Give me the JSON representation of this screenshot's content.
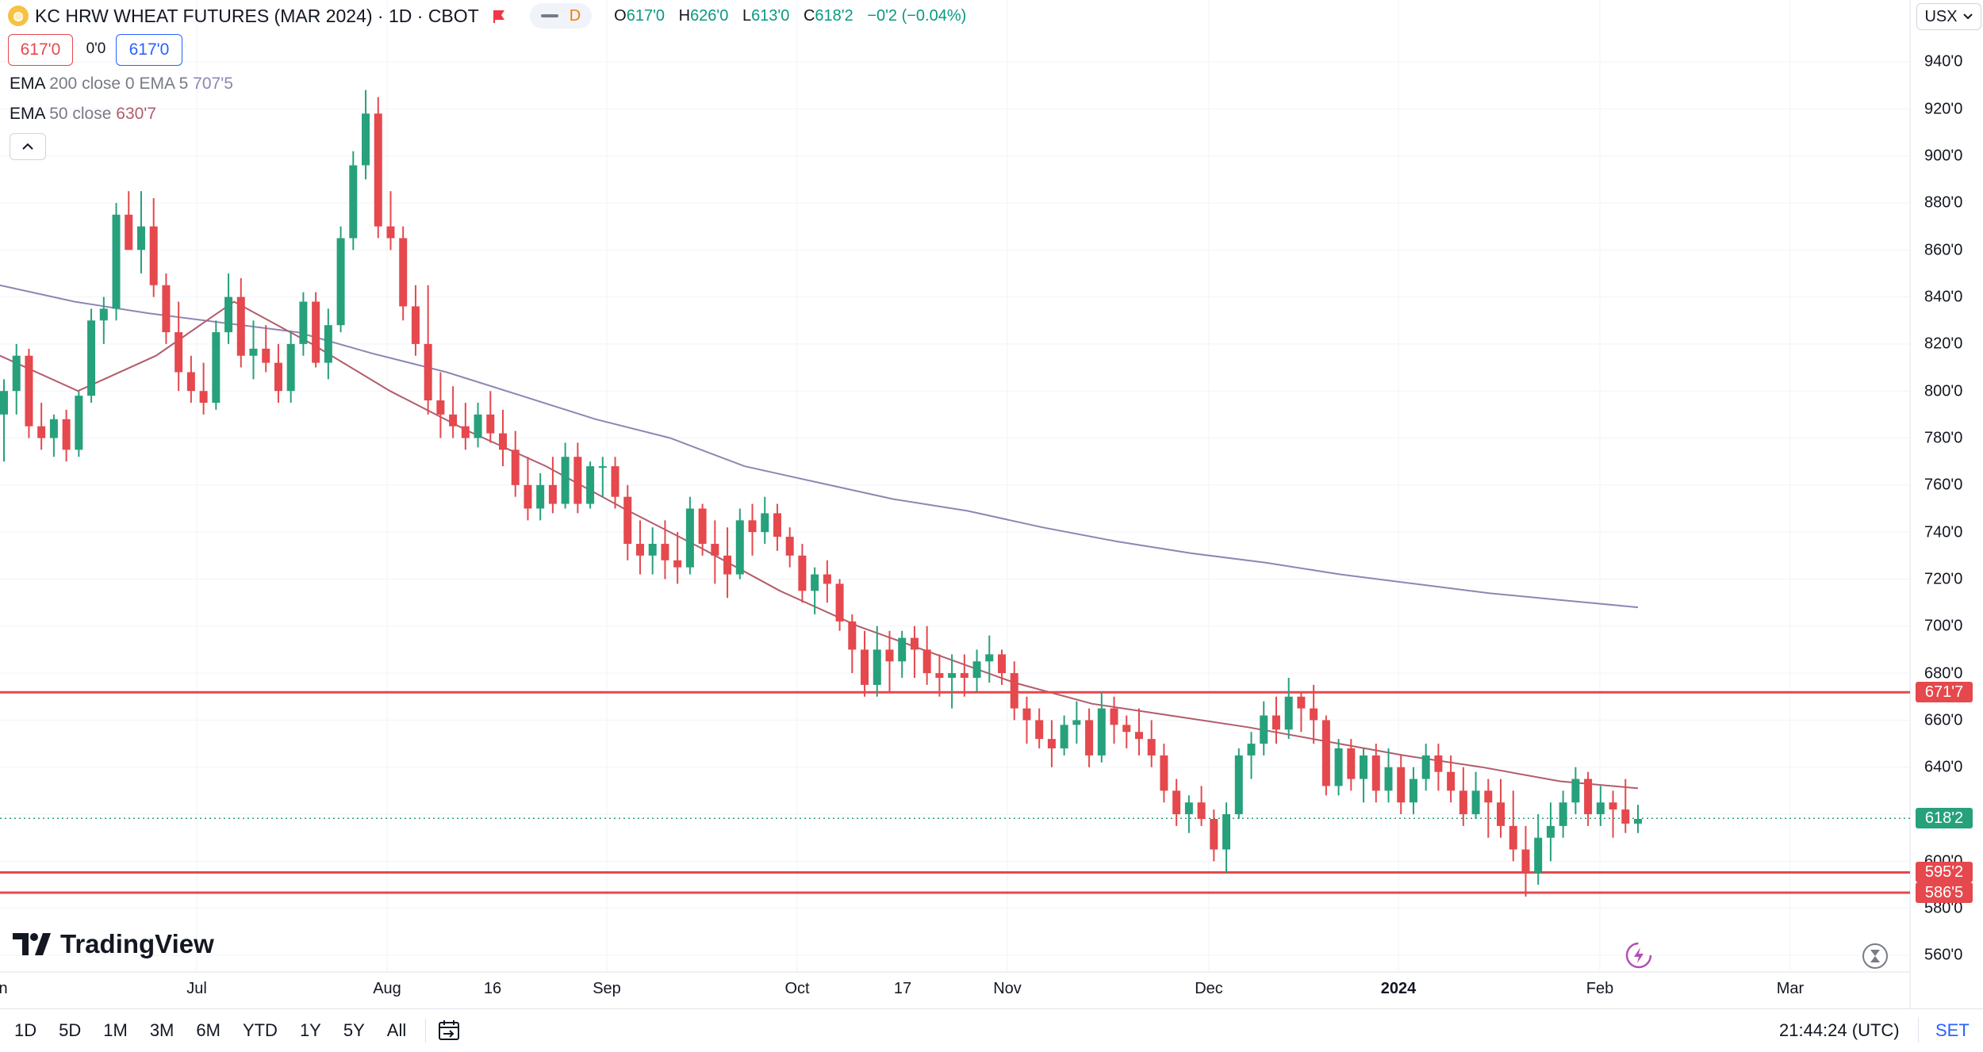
{
  "header": {
    "symbol_title": "KC HRW WHEAT FUTURES (MAR 2024) · 1D · CBOT",
    "badge_letter": "D",
    "ohlc": {
      "o_label": "O",
      "o_value": "617'0",
      "h_label": "H",
      "h_value": "626'0",
      "l_label": "L",
      "l_value": "613'0",
      "c_label": "C",
      "c_value": "618'2",
      "change": "−0'2 (−0.04%)"
    },
    "sell_price": "617'0",
    "spread": "0'0",
    "buy_price": "617'0"
  },
  "legend": {
    "ema200_name": "EMA",
    "ema200_params": "200 close 0 EMA 5",
    "ema200_value": "707'5",
    "ema50_name": "EMA",
    "ema50_params": "50 close",
    "ema50_value": "630'7"
  },
  "currency_selector": "USX",
  "y_axis_labels": [
    "940'0",
    "920'0",
    "900'0",
    "880'0",
    "860'0",
    "840'0",
    "820'0",
    "800'0",
    "780'0",
    "760'0",
    "740'0",
    "720'0",
    "700'0",
    "680'0",
    "660'0",
    "640'0",
    "600'0",
    "580'0",
    "560'0"
  ],
  "price_tags": {
    "resistance": "671'7",
    "last": "618'2",
    "support_1": "595'2",
    "support_2": "586'5"
  },
  "x_axis_labels": [
    "n",
    "Jul",
    "Aug",
    "16",
    "Sep",
    "Oct",
    "17",
    "Nov",
    "Dec",
    "2024",
    "Feb",
    "Mar"
  ],
  "brand": "TradingView",
  "bottom_bar": {
    "timeframes": [
      "1D",
      "5D",
      "1M",
      "3M",
      "6M",
      "YTD",
      "1Y",
      "5Y",
      "All"
    ],
    "clock": "21:44:24 (UTC)",
    "set_label": "SET"
  },
  "colors": {
    "up": "#26a17b",
    "down": "#e5484d",
    "ema200": "#8c87b3",
    "ema50": "#b35c6b",
    "level_line": "#e5484d",
    "last_tag": "#26a17b"
  },
  "chart_data": {
    "type": "candlestick",
    "y_scale_labels": [
      "940'0",
      "920'0",
      "900'0",
      "880'0",
      "860'0",
      "840'0",
      "820'0",
      "800'0",
      "780'0",
      "760'0",
      "740'0",
      "720'0",
      "700'0",
      "680'0",
      "660'0",
      "640'0",
      "600'0",
      "580'0",
      "560'0"
    ],
    "ylim": [
      555,
      950
    ],
    "horizontal_levels": [
      671.875,
      595.25,
      586.625
    ],
    "last_price": 618.25,
    "ema200": [
      845,
      838,
      833,
      829,
      825,
      816,
      808,
      798,
      788,
      780,
      768,
      761,
      754,
      749,
      742,
      736,
      731,
      727,
      722,
      718,
      714,
      711,
      708
    ],
    "ema50": [
      815,
      800,
      815,
      838,
      820,
      800,
      783,
      768,
      750,
      733,
      715,
      700,
      688,
      676,
      667,
      662,
      657,
      651,
      645,
      640,
      634,
      631
    ],
    "candles": [
      [
        790,
        805,
        770,
        800
      ],
      [
        800,
        820,
        790,
        815
      ],
      [
        815,
        818,
        780,
        785
      ],
      [
        785,
        795,
        775,
        780
      ],
      [
        780,
        790,
        772,
        788
      ],
      [
        788,
        792,
        770,
        775
      ],
      [
        775,
        800,
        772,
        798
      ],
      [
        798,
        835,
        795,
        830
      ],
      [
        830,
        840,
        820,
        835
      ],
      [
        835,
        880,
        830,
        875
      ],
      [
        875,
        885,
        860,
        860
      ],
      [
        860,
        885,
        850,
        870
      ],
      [
        870,
        882,
        840,
        845
      ],
      [
        845,
        850,
        820,
        825
      ],
      [
        825,
        838,
        800,
        808
      ],
      [
        808,
        815,
        795,
        800
      ],
      [
        800,
        812,
        790,
        795
      ],
      [
        795,
        830,
        792,
        825
      ],
      [
        825,
        850,
        820,
        840
      ],
      [
        840,
        848,
        810,
        815
      ],
      [
        815,
        830,
        805,
        818
      ],
      [
        818,
        828,
        808,
        812
      ],
      [
        812,
        820,
        795,
        800
      ],
      [
        800,
        825,
        795,
        820
      ],
      [
        820,
        842,
        815,
        838
      ],
      [
        838,
        842,
        810,
        812
      ],
      [
        812,
        835,
        805,
        828
      ],
      [
        828,
        870,
        825,
        865
      ],
      [
        865,
        902,
        860,
        896
      ],
      [
        896,
        928,
        890,
        918
      ],
      [
        918,
        925,
        865,
        870
      ],
      [
        870,
        885,
        860,
        865
      ],
      [
        865,
        870,
        830,
        836
      ],
      [
        836,
        845,
        815,
        820
      ],
      [
        820,
        845,
        790,
        796
      ],
      [
        796,
        808,
        780,
        790
      ],
      [
        790,
        802,
        780,
        785
      ],
      [
        785,
        795,
        775,
        780
      ],
      [
        780,
        795,
        776,
        790
      ],
      [
        790,
        800,
        778,
        782
      ],
      [
        782,
        792,
        768,
        775
      ],
      [
        775,
        783,
        755,
        760
      ],
      [
        760,
        772,
        745,
        750
      ],
      [
        750,
        765,
        745,
        760
      ],
      [
        760,
        772,
        748,
        752
      ],
      [
        752,
        778,
        750,
        772
      ],
      [
        772,
        778,
        748,
        752
      ],
      [
        752,
        770,
        750,
        768
      ],
      [
        768,
        772,
        755,
        768
      ],
      [
        768,
        772,
        750,
        755
      ],
      [
        755,
        760,
        728,
        735
      ],
      [
        735,
        745,
        722,
        730
      ],
      [
        730,
        742,
        722,
        735
      ],
      [
        735,
        745,
        720,
        728
      ],
      [
        728,
        740,
        718,
        725
      ],
      [
        725,
        755,
        722,
        750
      ],
      [
        750,
        752,
        730,
        735
      ],
      [
        735,
        745,
        718,
        730
      ],
      [
        730,
        742,
        712,
        722
      ],
      [
        722,
        750,
        720,
        745
      ],
      [
        745,
        752,
        730,
        740
      ],
      [
        740,
        755,
        735,
        748
      ],
      [
        748,
        752,
        732,
        738
      ],
      [
        738,
        742,
        725,
        730
      ],
      [
        730,
        735,
        710,
        715
      ],
      [
        715,
        725,
        705,
        722
      ],
      [
        722,
        728,
        710,
        718
      ],
      [
        718,
        720,
        698,
        702
      ],
      [
        702,
        705,
        680,
        690
      ],
      [
        690,
        698,
        670,
        675
      ],
      [
        675,
        700,
        670,
        690
      ],
      [
        690,
        698,
        672,
        685
      ],
      [
        685,
        698,
        678,
        695
      ],
      [
        695,
        700,
        678,
        690
      ],
      [
        690,
        700,
        675,
        680
      ],
      [
        680,
        688,
        670,
        678
      ],
      [
        678,
        688,
        665,
        680
      ],
      [
        680,
        688,
        670,
        678
      ],
      [
        678,
        690,
        672,
        685
      ],
      [
        685,
        696,
        676,
        688
      ],
      [
        688,
        690,
        675,
        680
      ],
      [
        680,
        685,
        660,
        665
      ],
      [
        665,
        670,
        650,
        660
      ],
      [
        660,
        665,
        648,
        652
      ],
      [
        652,
        660,
        640,
        648
      ],
      [
        648,
        662,
        645,
        658
      ],
      [
        658,
        668,
        650,
        660
      ],
      [
        660,
        665,
        640,
        645
      ],
      [
        645,
        672,
        642,
        665
      ],
      [
        665,
        670,
        650,
        658
      ],
      [
        658,
        662,
        648,
        655
      ],
      [
        655,
        665,
        645,
        652
      ],
      [
        652,
        660,
        640,
        645
      ],
      [
        645,
        650,
        625,
        630
      ],
      [
        630,
        635,
        615,
        620
      ],
      [
        620,
        628,
        612,
        625
      ],
      [
        625,
        632,
        615,
        618
      ],
      [
        618,
        622,
        600,
        605
      ],
      [
        605,
        625,
        595,
        620
      ],
      [
        620,
        648,
        618,
        645
      ],
      [
        645,
        655,
        635,
        650
      ],
      [
        650,
        668,
        645,
        662
      ],
      [
        662,
        670,
        650,
        656
      ],
      [
        656,
        678,
        652,
        670
      ],
      [
        670,
        672,
        655,
        665
      ],
      [
        665,
        675,
        650,
        660
      ],
      [
        660,
        662,
        628,
        632
      ],
      [
        632,
        652,
        628,
        648
      ],
      [
        648,
        652,
        630,
        635
      ],
      [
        635,
        648,
        625,
        645
      ],
      [
        645,
        650,
        625,
        630
      ],
      [
        630,
        648,
        625,
        640
      ],
      [
        640,
        645,
        620,
        625
      ],
      [
        625,
        640,
        620,
        635
      ],
      [
        635,
        650,
        630,
        645
      ],
      [
        645,
        650,
        630,
        638
      ],
      [
        638,
        645,
        625,
        630
      ],
      [
        630,
        640,
        615,
        620
      ],
      [
        620,
        638,
        618,
        630
      ],
      [
        630,
        635,
        610,
        625
      ],
      [
        625,
        635,
        610,
        615
      ],
      [
        615,
        630,
        600,
        605
      ],
      [
        605,
        615,
        585,
        595
      ],
      [
        595,
        620,
        590,
        610
      ],
      [
        610,
        625,
        600,
        615
      ],
      [
        615,
        630,
        610,
        625
      ],
      [
        625,
        640,
        620,
        635
      ],
      [
        635,
        638,
        615,
        620
      ],
      [
        620,
        632,
        615,
        625
      ],
      [
        625,
        630,
        610,
        622
      ],
      [
        622,
        635,
        612,
        616
      ],
      [
        616,
        624,
        612,
        618
      ]
    ]
  }
}
